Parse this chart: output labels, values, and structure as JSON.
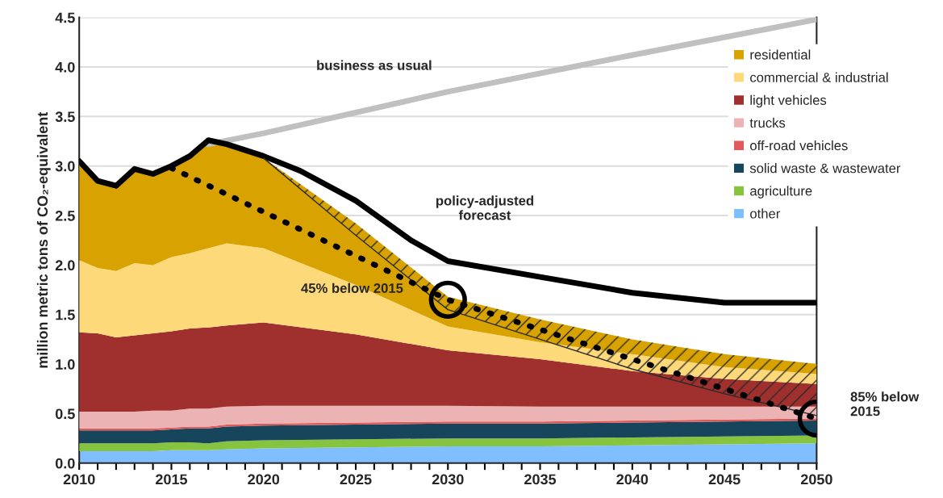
{
  "chart_data": {
    "type": "area",
    "stacked": true,
    "ylabel": "million metric tons of CO₂-equivalent",
    "x": [
      2010,
      2011,
      2012,
      2013,
      2014,
      2015,
      2016,
      2017,
      2018,
      2020,
      2025,
      2030,
      2035,
      2040,
      2045,
      2050
    ],
    "series": [
      {
        "name": "other",
        "color": "#7fbfff",
        "values": [
          0.12,
          0.12,
          0.12,
          0.12,
          0.12,
          0.13,
          0.13,
          0.13,
          0.14,
          0.15,
          0.16,
          0.17,
          0.17,
          0.18,
          0.19,
          0.2
        ]
      },
      {
        "name": "agriculture",
        "color": "#86c440",
        "values": [
          0.08,
          0.08,
          0.08,
          0.08,
          0.08,
          0.08,
          0.08,
          0.07,
          0.08,
          0.08,
          0.08,
          0.08,
          0.08,
          0.08,
          0.08,
          0.08
        ]
      },
      {
        "name": "solid waste & wastewater",
        "color": "#17455c",
        "values": [
          0.13,
          0.13,
          0.13,
          0.13,
          0.13,
          0.13,
          0.14,
          0.15,
          0.15,
          0.15,
          0.15,
          0.15,
          0.15,
          0.15,
          0.15,
          0.15
        ]
      },
      {
        "name": "off-road vehicles",
        "color": "#e05a5a",
        "values": [
          0.02,
          0.02,
          0.02,
          0.02,
          0.02,
          0.02,
          0.02,
          0.02,
          0.02,
          0.02,
          0.02,
          0.02,
          0.02,
          0.02,
          0.02,
          0.02
        ]
      },
      {
        "name": "trucks",
        "color": "#ebb3b3",
        "values": [
          0.17,
          0.17,
          0.17,
          0.17,
          0.18,
          0.17,
          0.18,
          0.18,
          0.18,
          0.18,
          0.17,
          0.16,
          0.15,
          0.14,
          0.13,
          0.12
        ]
      },
      {
        "name": "light vehicles",
        "color": "#a0302e",
        "values": [
          0.8,
          0.79,
          0.75,
          0.77,
          0.78,
          0.8,
          0.81,
          0.82,
          0.82,
          0.84,
          0.72,
          0.56,
          0.48,
          0.36,
          0.28,
          0.23
        ]
      },
      {
        "name": "commercial & industrial",
        "color": "#fdd97a",
        "values": [
          0.73,
          0.66,
          0.67,
          0.73,
          0.69,
          0.75,
          0.76,
          0.8,
          0.83,
          0.75,
          0.5,
          0.24,
          0.17,
          0.17,
          0.12,
          0.1
        ]
      },
      {
        "name": "residential",
        "color": "#d8a300",
        "values": [
          0.97,
          0.86,
          0.85,
          0.93,
          0.91,
          0.9,
          0.98,
          1.08,
          0.98,
          0.91,
          0.62,
          0.3,
          0.23,
          0.15,
          0.13,
          0.1
        ]
      },
      {
        "type": "line",
        "color": "#c0c0c0",
        "x": [
          2017,
          2020,
          2030,
          2040,
          2050
        ],
        "values": [
          3.22,
          3.33,
          3.75,
          4.12,
          4.48
        ]
      },
      {
        "type": "line",
        "color": "#000000",
        "x": [
          2010,
          2011,
          2012,
          2013,
          2014,
          2015,
          2016,
          2017,
          2018,
          2020,
          2022,
          2025,
          2028,
          2030,
          2035,
          2040,
          2045,
          2050
        ],
        "values": [
          3.05,
          2.85,
          2.8,
          2.97,
          2.92,
          3.0,
          3.1,
          3.26,
          3.22,
          3.1,
          2.95,
          2.65,
          2.25,
          2.04,
          1.88,
          1.72,
          1.62,
          1.62
        ]
      },
      {
        "type": "line",
        "color": "#2a2a2a",
        "x": [
          2020,
          2025,
          2030,
          2035,
          2040,
          2045,
          2050
        ],
        "values": [
          3.08,
          2.3,
          1.55,
          1.25,
          0.95,
          0.7,
          0.48
        ],
        "lower": [
          3.08,
          2.3,
          1.55,
          1.25,
          0.95,
          0.7,
          0.48
        ],
        "upper": [
          3.08,
          2.42,
          1.68,
          1.45,
          1.25,
          1.1,
          1.0
        ]
      },
      {
        "type": "line",
        "color": "#000000",
        "line_style": "dotted",
        "x": [
          2015,
          2030,
          2050
        ],
        "values": [
          2.98,
          1.65,
          0.45
        ]
      },
      {
        "type": "scatter",
        "color": "#000000",
        "marker": "circle",
        "x": [
          2030,
          2050
        ],
        "values": [
          1.65,
          0.45
        ]
      }
    ],
    "annotations": [
      "business as usual",
      "policy-adjusted\nforecast",
      "45% below 2015",
      {
        "text": "85% below\n2015",
        "x": 2050,
        "y": 0.45
      }
    ],
    "xlim": [
      2010,
      2050
    ],
    "xticks": [
      2010,
      {
        "value": 2011,
        "label": null
      },
      {
        "value": 2012,
        "label": null
      },
      {
        "value": 2013,
        "label": null
      },
      {
        "value": 2014,
        "label": null
      },
      2015,
      {
        "value": 2016,
        "label": null
      },
      {
        "value": 2017,
        "label": null
      },
      {
        "value": 2018,
        "label": null
      },
      {
        "value": 2019,
        "label": null
      },
      2020,
      {
        "value": 2021,
        "label": null
      },
      {
        "value": 2022,
        "label": null
      },
      {
        "value": 2023,
        "label": null
      },
      {
        "value": 2024,
        "label": null
      },
      2025,
      {
        "value": 2026,
        "label": null
      },
      {
        "value": 2027,
        "label": null
      },
      {
        "value": 2028,
        "label": null
      },
      {
        "value": 2029,
        "label": null
      },
      2030,
      {
        "value": 2031,
        "label": null
      },
      {
        "value": 2032,
        "label": null
      },
      {
        "value": 2033,
        "label": null
      },
      {
        "value": 2034,
        "label": null
      },
      2035,
      {
        "value": 2036,
        "label": null
      },
      {
        "value": 2037,
        "label": null
      },
      {
        "value": 2038,
        "label": null
      },
      {
        "value": 2039,
        "label": null
      },
      2040,
      {
        "value": 2041,
        "label": null
      },
      {
        "value": 2042,
        "label": null
      },
      {
        "value": 2043,
        "label": null
      },
      {
        "value": 2044,
        "label": null
      },
      2045,
      {
        "value": 2046,
        "label": null
      },
      {
        "value": 2047,
        "label": null
      },
      {
        "value": 2048,
        "label": null
      },
      {
        "value": 2049,
        "label": null
      },
      2050
    ],
    "ylim": [
      0,
      4.5
    ],
    "yticks": [
      {
        "value": 0,
        "label": "0.0"
      },
      0.5,
      {
        "value": 1,
        "label": "1.0"
      },
      1.5,
      {
        "value": 2,
        "label": "2.0"
      },
      2.5,
      {
        "value": 3,
        "label": "3.0"
      },
      3.5,
      {
        "value": 4,
        "label": "4.0"
      },
      4.5
    ],
    "grid": "y",
    "legend": "top right"
  }
}
